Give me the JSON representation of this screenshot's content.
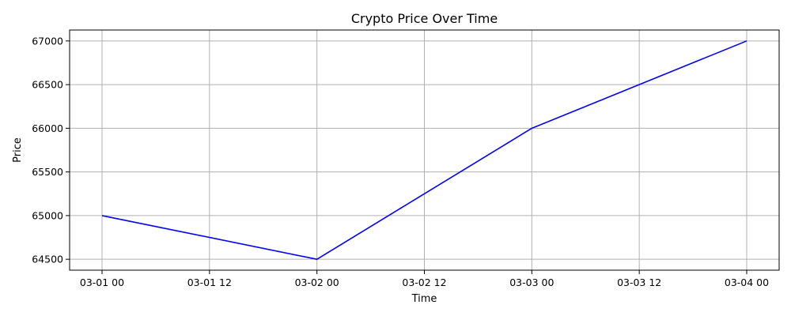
{
  "chart_data": {
    "type": "line",
    "title": "Crypto Price Over Time",
    "xlabel": "Time",
    "ylabel": "Price",
    "x": [
      "03-01 00",
      "03-02 00",
      "03-03 00",
      "03-04 00"
    ],
    "series": [
      {
        "values": [
          65000,
          64500,
          66000,
          67000
        ],
        "color": "#0000ff"
      }
    ],
    "x_ticks": [
      "03-01 00",
      "03-01 12",
      "03-02 00",
      "03-02 12",
      "03-03 00",
      "03-03 12",
      "03-04 00"
    ],
    "y_ticks": [
      64500,
      65000,
      65500,
      66000,
      66500,
      67000
    ],
    "ylim": [
      64375,
      67125
    ],
    "grid": true,
    "grid_color": "#b0b0b0",
    "legend": "none"
  }
}
